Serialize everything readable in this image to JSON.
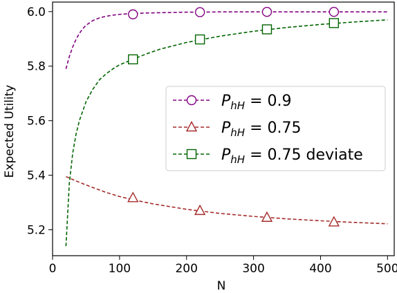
{
  "chart_data": {
    "type": "line",
    "title": "",
    "xlabel": "N",
    "ylabel": "Expected Utility",
    "xlim": [
      0,
      510
    ],
    "ylim": [
      5.105,
      6.035
    ],
    "x_ticks": [
      0,
      100,
      200,
      300,
      400,
      500
    ],
    "x_tick_labels": [
      "0",
      "100",
      "200",
      "300",
      "400",
      "500"
    ],
    "y_ticks": [
      5.2,
      5.4,
      5.6,
      5.8,
      6.0
    ],
    "y_tick_labels": [
      "5.2",
      "5.4",
      "5.6",
      "5.8",
      "6.0"
    ],
    "grid": false,
    "legend_position": "center-right",
    "series": [
      {
        "name": "P_hH = 0.9",
        "legend_math": "P",
        "legend_sub": "hH",
        "legend_rest": " = 0.9",
        "color": "#800080",
        "marker": "circle",
        "line_style": "dashed",
        "x": [
          20,
          25,
          30,
          35,
          40,
          45,
          50,
          60,
          70,
          80,
          90,
          100,
          120,
          140,
          160,
          180,
          200,
          220,
          250,
          300,
          350,
          400,
          450,
          500
        ],
        "y": [
          5.79,
          5.835,
          5.87,
          5.898,
          5.92,
          5.937,
          5.95,
          5.967,
          5.977,
          5.983,
          5.987,
          5.99,
          5.993,
          5.995,
          5.996,
          5.997,
          5.998,
          5.998,
          5.999,
          5.999,
          5.999,
          5.999,
          5.999,
          5.999
        ],
        "marker_x": [
          120,
          220,
          320,
          420
        ],
        "marker_y": [
          5.99,
          5.998,
          5.999,
          5.999
        ]
      },
      {
        "name": "P_hH = 0.75",
        "legend_math": "P",
        "legend_sub": "hH",
        "legend_rest": " = 0.75",
        "color": "#a52a2a",
        "marker": "triangle",
        "line_style": "dashed",
        "x": [
          20,
          40,
          60,
          80,
          100,
          120,
          150,
          200,
          250,
          300,
          350,
          400,
          450,
          500
        ],
        "y": [
          5.395,
          5.374,
          5.355,
          5.337,
          5.322,
          5.31,
          5.295,
          5.275,
          5.26,
          5.249,
          5.24,
          5.233,
          5.227,
          5.222
        ],
        "marker_x": [
          120,
          220,
          320,
          420
        ],
        "marker_y": [
          5.317,
          5.27,
          5.245,
          5.228
        ]
      },
      {
        "name": "P_hH = 0.75 deviate",
        "legend_math": "P",
        "legend_sub": "hH",
        "legend_rest": " = 0.75 deviate",
        "color": "#006400",
        "marker": "square",
        "line_style": "dashed",
        "x": [
          20,
          25,
          30,
          35,
          40,
          50,
          60,
          70,
          80,
          90,
          100,
          120,
          140,
          160,
          200,
          250,
          300,
          350,
          400,
          450,
          500
        ],
        "y": [
          5.14,
          5.37,
          5.48,
          5.55,
          5.6,
          5.67,
          5.715,
          5.75,
          5.772,
          5.79,
          5.805,
          5.825,
          5.845,
          5.862,
          5.887,
          5.91,
          5.928,
          5.942,
          5.953,
          5.962,
          5.97
        ],
        "marker_x": [
          120,
          220,
          320,
          420
        ],
        "marker_y": [
          5.825,
          5.898,
          5.935,
          5.958
        ]
      }
    ]
  }
}
